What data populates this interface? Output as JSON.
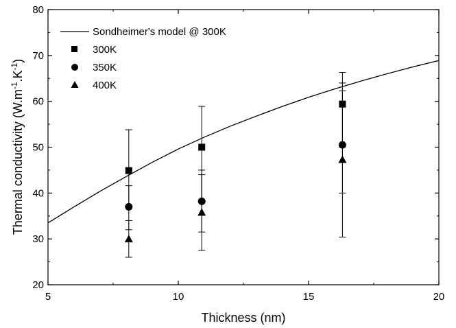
{
  "chart_data": {
    "type": "scatter",
    "title": "",
    "xlabel": "Thickness (nm)",
    "ylabel_parts": [
      "Thermal conductivity (W.m",
      "-1",
      ".K",
      "-1",
      ")"
    ],
    "xlim": [
      5,
      20
    ],
    "ylim": [
      20,
      80
    ],
    "x_ticks": [
      5,
      10,
      15,
      20
    ],
    "y_ticks": [
      20,
      30,
      40,
      50,
      60,
      70,
      80
    ],
    "grid": false,
    "legend_position": "top-left",
    "model_line": {
      "name": "Sondheimer's model @ 300K",
      "x": [
        5,
        6,
        7,
        8,
        9,
        10,
        11,
        12,
        13,
        14,
        15,
        16,
        17,
        18,
        19,
        20
      ],
      "y": [
        33.5,
        37.0,
        40.4,
        43.6,
        46.7,
        49.6,
        52.2,
        54.6,
        56.8,
        58.9,
        60.9,
        62.7,
        64.4,
        66.0,
        67.5,
        68.9
      ]
    },
    "series": [
      {
        "name": "300K",
        "marker": "square",
        "points": [
          {
            "x": 8.1,
            "y": 44.9,
            "err_low": 37.0,
            "err_high": 53.8
          },
          {
            "x": 10.9,
            "y": 50.0,
            "err_low": 38.0,
            "err_high": 58.9
          },
          {
            "x": 16.3,
            "y": 59.4,
            "err_low": 50.0,
            "err_high": 66.3
          }
        ]
      },
      {
        "name": "350K",
        "marker": "circle",
        "points": [
          {
            "x": 8.1,
            "y": 37.0,
            "err_low": 32.0,
            "err_high": 41.6
          },
          {
            "x": 10.9,
            "y": 38.2,
            "err_low": 31.5,
            "err_high": 45.0
          },
          {
            "x": 16.3,
            "y": 50.5,
            "err_low": 40.0,
            "err_high": 62.3
          }
        ]
      },
      {
        "name": "400K",
        "marker": "triangle",
        "points": [
          {
            "x": 8.1,
            "y": 30.0,
            "err_low": 26.0,
            "err_high": 34.0
          },
          {
            "x": 10.9,
            "y": 35.8,
            "err_low": 27.5,
            "err_high": 44.0
          },
          {
            "x": 16.3,
            "y": 47.3,
            "err_low": 30.4,
            "err_high": 64.0
          }
        ]
      }
    ]
  }
}
